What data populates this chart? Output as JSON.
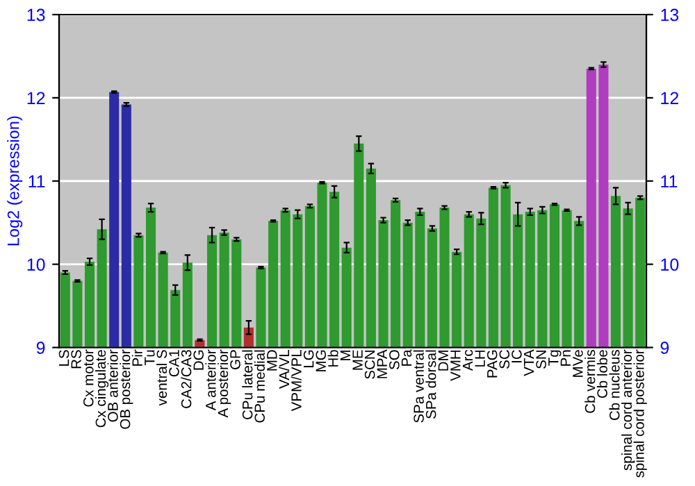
{
  "chart_data": {
    "type": "bar",
    "ylabel": "Log2 (expression)",
    "categories": [
      "LS",
      "RS",
      "Cx motor",
      "Cx cingulate",
      "OB anterior",
      "OB posterior",
      "Pir",
      "Tu",
      "ventral S",
      "CA1",
      "CA2/CA3",
      "DG",
      "A anterior",
      "A posterior",
      "GP",
      "CPu lateral",
      "CPu medial",
      "MD",
      "VA/VL",
      "VPM/VPL",
      "LG",
      "MG",
      "Hb",
      "M",
      "ME",
      "SCN",
      "MPA",
      "SO",
      "Pa",
      "SPa ventral",
      "SPa dorsal",
      "DM",
      "VMH",
      "Arc",
      "LH",
      "PAG",
      "SC",
      "IC",
      "VTA",
      "SN",
      "Tg",
      "Pn",
      "MVe",
      "Cb vermis",
      "Cb lobe",
      "Cb nucleus",
      "spinal cord anterior",
      "spinal cord posterior"
    ],
    "values": [
      9.9,
      9.8,
      10.03,
      10.42,
      12.07,
      11.92,
      10.35,
      10.68,
      10.14,
      9.69,
      10.02,
      9.09,
      10.35,
      10.38,
      10.3,
      9.24,
      9.96,
      10.52,
      10.65,
      10.6,
      10.7,
      10.98,
      10.87,
      10.2,
      11.45,
      11.15,
      10.53,
      10.77,
      10.5,
      10.63,
      10.43,
      10.68,
      10.15,
      10.6,
      10.55,
      10.92,
      10.95,
      10.6,
      10.63,
      10.65,
      10.72,
      10.65,
      10.52,
      12.35,
      12.4,
      10.82,
      10.67,
      10.8
    ],
    "errors": [
      0.02,
      0.01,
      0.04,
      0.12,
      0.01,
      0.02,
      0.02,
      0.05,
      0.01,
      0.06,
      0.09,
      0.01,
      0.09,
      0.03,
      0.02,
      0.08,
      0.01,
      0.01,
      0.02,
      0.05,
      0.02,
      0.01,
      0.07,
      0.06,
      0.09,
      0.06,
      0.03,
      0.02,
      0.03,
      0.04,
      0.03,
      0.02,
      0.03,
      0.03,
      0.07,
      0.01,
      0.03,
      0.14,
      0.04,
      0.04,
      0.01,
      0.01,
      0.05,
      0.01,
      0.03,
      0.1,
      0.07,
      0.02
    ],
    "colors": [
      "#2f9a2f",
      "#2f9a2f",
      "#2f9a2f",
      "#2f9a2f",
      "#2b2ba5",
      "#2b2ba5",
      "#2f9a2f",
      "#2f9a2f",
      "#2f9a2f",
      "#2f9a2f",
      "#2f9a2f",
      "#b03030",
      "#2f9a2f",
      "#2f9a2f",
      "#2f9a2f",
      "#b03030",
      "#2f9a2f",
      "#2f9a2f",
      "#2f9a2f",
      "#2f9a2f",
      "#2f9a2f",
      "#2f9a2f",
      "#2f9a2f",
      "#2f9a2f",
      "#2f9a2f",
      "#2f9a2f",
      "#2f9a2f",
      "#2f9a2f",
      "#2f9a2f",
      "#2f9a2f",
      "#2f9a2f",
      "#2f9a2f",
      "#2f9a2f",
      "#2f9a2f",
      "#2f9a2f",
      "#2f9a2f",
      "#2f9a2f",
      "#2f9a2f",
      "#2f9a2f",
      "#2f9a2f",
      "#2f9a2f",
      "#2f9a2f",
      "#2f9a2f",
      "#b03cbf",
      "#b03cbf",
      "#2f9a2f",
      "#2f9a2f",
      "#2f9a2f"
    ],
    "ylim": [
      9,
      13
    ],
    "yticks": [
      9,
      10,
      11,
      12,
      13
    ],
    "y2lim": [
      9,
      13
    ],
    "y2ticks": [
      9,
      10,
      11,
      12,
      13
    ],
    "grid": "y"
  }
}
